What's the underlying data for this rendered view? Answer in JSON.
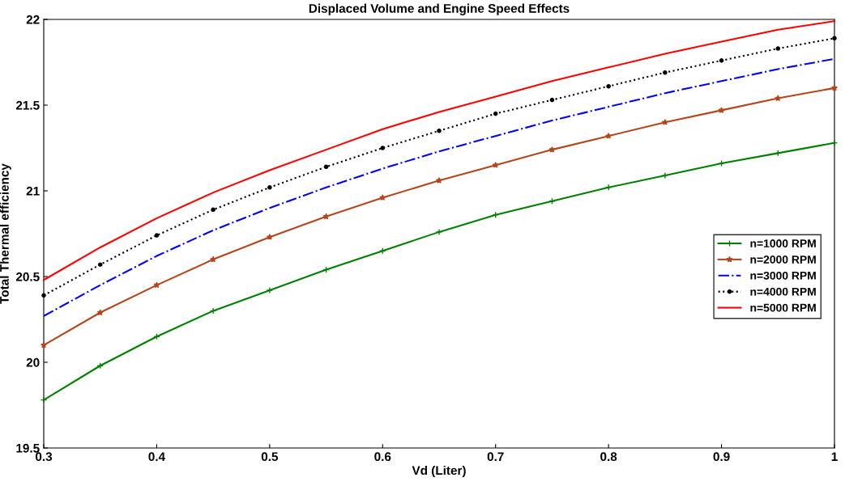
{
  "chart_data": {
    "type": "line",
    "title": "Displaced Volume and Engine Speed Effects",
    "xlabel": "Vd (Liter)",
    "ylabel": "Total Thermal efficiency",
    "x": [
      0.3,
      0.35,
      0.4,
      0.45,
      0.5,
      0.55,
      0.6,
      0.65,
      0.7,
      0.75,
      0.8,
      0.85,
      0.9,
      0.95,
      1.0
    ],
    "series": [
      {
        "name": "n=1000 RPM",
        "color": "#008000",
        "marker": "cross",
        "line_style": "solid",
        "values": [
          19.78,
          19.98,
          20.15,
          20.3,
          20.42,
          20.54,
          20.65,
          20.76,
          20.86,
          20.94,
          21.02,
          21.09,
          21.16,
          21.22,
          21.28
        ]
      },
      {
        "name": "n=2000 RPM",
        "color": "#b5451b",
        "marker": "star",
        "line_style": "solid",
        "values": [
          20.1,
          20.29,
          20.45,
          20.6,
          20.73,
          20.85,
          20.96,
          21.06,
          21.15,
          21.24,
          21.32,
          21.4,
          21.47,
          21.54,
          21.6
        ]
      },
      {
        "name": "n=3000 RPM",
        "color": "#0000ff",
        "marker": "none",
        "line_style": "dashdot",
        "values": [
          20.27,
          20.45,
          20.62,
          20.77,
          20.9,
          21.02,
          21.13,
          21.23,
          21.32,
          21.41,
          21.49,
          21.57,
          21.64,
          21.71,
          21.77
        ]
      },
      {
        "name": "n=4000 RPM",
        "color": "#000000",
        "marker": "circle",
        "line_style": "dotted",
        "values": [
          20.39,
          20.57,
          20.74,
          20.89,
          21.02,
          21.14,
          21.25,
          21.35,
          21.45,
          21.53,
          21.61,
          21.69,
          21.76,
          21.83,
          21.89
        ]
      },
      {
        "name": "n=5000 RPM",
        "color": "#ff0000",
        "marker": "none",
        "line_style": "solid",
        "values": [
          20.48,
          20.67,
          20.84,
          20.99,
          21.12,
          21.24,
          21.36,
          21.46,
          21.55,
          21.64,
          21.72,
          21.8,
          21.87,
          21.94,
          21.99
        ]
      }
    ],
    "xlim": [
      0.3,
      1.0
    ],
    "xticks": [
      0.3,
      0.4,
      0.5,
      0.6,
      0.7,
      0.8,
      0.9,
      1
    ],
    "ylim": [
      19.5,
      22
    ],
    "yticks": [
      19.5,
      20,
      20.5,
      21,
      21.5,
      22
    ],
    "grid": false,
    "legend": "right"
  }
}
